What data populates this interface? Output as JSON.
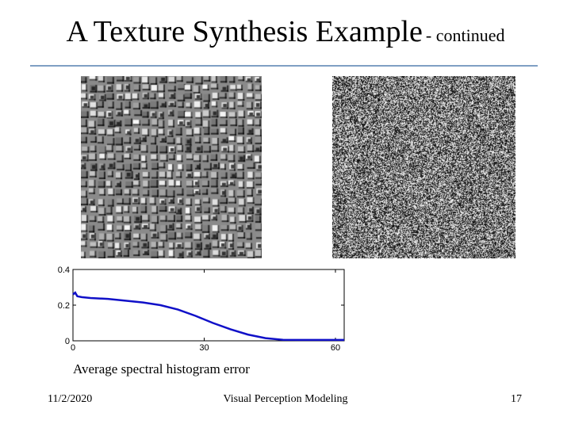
{
  "slide": {
    "title": "A Texture Synthesis Example",
    "title_suffix": "- continued",
    "rule_color": "#7f9fc4",
    "caption": "Average spectral histogram error",
    "footer": {
      "date": "11/2/2020",
      "center": "Visual Perception Modeling",
      "page": "17"
    }
  },
  "images": {
    "left": "observed-texture-image",
    "right": "synthesized-noise-texture-image"
  },
  "chart_data": {
    "type": "line",
    "title": "",
    "xlabel": "",
    "ylabel": "",
    "xlim": [
      0,
      62
    ],
    "ylim": [
      0,
      0.4
    ],
    "x_ticks": [
      "0",
      "30",
      "60"
    ],
    "y_ticks": [
      "0.4",
      "0.2",
      "0"
    ],
    "color": "#1010c8",
    "series": [
      {
        "x": [
          0,
          0.5,
          1,
          2,
          4,
          8,
          12,
          16,
          20,
          24,
          28,
          32,
          36,
          40,
          44,
          48,
          52,
          56,
          60,
          62
        ],
        "y": [
          0.26,
          0.27,
          0.25,
          0.245,
          0.24,
          0.235,
          0.225,
          0.215,
          0.2,
          0.175,
          0.14,
          0.1,
          0.065,
          0.035,
          0.015,
          0.006,
          0.005,
          0.005,
          0.005,
          0.005
        ]
      }
    ]
  }
}
